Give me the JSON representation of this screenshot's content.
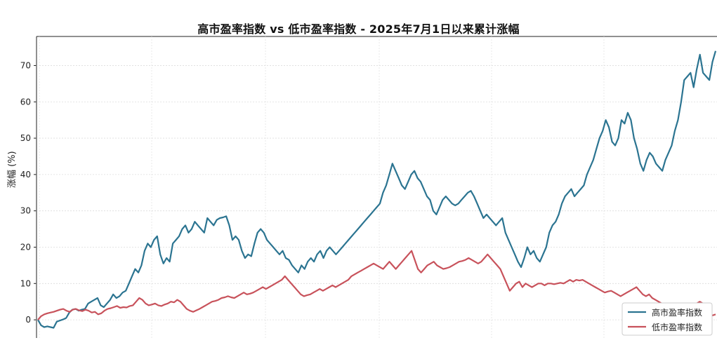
{
  "chart_data": {
    "type": "line",
    "title": "高市盈率指数 vs 低市盈率指数 - 2025年7月1日以来累计涨幅",
    "xlabel": "",
    "ylabel": "涨幅 (%)",
    "ylim": [
      -5,
      78
    ],
    "yticks": [
      0,
      10,
      20,
      30,
      40,
      50,
      60,
      70
    ],
    "grid": true,
    "legend": "bottom-right",
    "x_tick_labels_note": "cut off at bottom edge",
    "series": [
      {
        "name": "高市盈率指数",
        "color": "#2b7491",
        "values": [
          0,
          -1.5,
          -2,
          -1.8,
          -2,
          -2.2,
          -0.5,
          -0.2,
          0.1,
          0.5,
          2,
          2.8,
          3,
          2.5,
          2.8,
          3,
          4.5,
          5,
          5.5,
          6,
          4,
          3.5,
          4.5,
          5.5,
          7,
          6,
          6.5,
          7.5,
          8,
          10,
          12,
          14,
          13,
          15,
          19,
          21,
          20,
          22,
          23,
          18,
          15.5,
          17,
          16,
          21,
          22,
          23,
          25,
          26,
          24,
          25,
          27,
          26,
          25,
          24,
          28,
          27,
          26,
          27.5,
          28,
          28.2,
          28.5,
          26,
          22,
          23,
          22,
          19,
          17,
          18,
          17.5,
          21,
          24,
          25,
          24,
          22,
          21,
          20,
          19,
          18,
          19,
          17,
          16.5,
          15,
          14,
          13,
          15,
          14,
          16,
          17,
          16,
          18,
          19,
          17,
          19,
          20,
          19,
          18,
          19,
          20,
          21,
          22,
          23,
          24,
          25,
          26,
          27,
          28,
          29,
          30,
          31,
          32,
          35,
          37,
          40,
          43,
          41,
          39,
          37,
          36,
          38,
          40,
          41,
          39,
          38,
          36,
          34,
          33,
          30,
          29,
          31,
          33,
          34,
          33,
          32,
          31.5,
          32,
          33,
          34,
          35,
          35.5,
          34,
          32,
          30,
          28,
          29,
          28,
          27,
          26,
          27,
          28,
          24,
          22,
          20,
          18,
          16,
          14.5,
          17,
          20,
          18,
          19,
          17,
          16,
          18,
          20,
          24,
          26,
          27,
          29,
          32,
          34,
          35,
          36,
          34,
          35,
          36,
          37,
          40,
          42,
          44,
          47,
          50,
          52,
          55,
          53,
          49,
          48,
          50,
          55,
          54,
          57,
          55,
          50,
          47,
          43,
          41,
          44,
          46,
          45,
          43,
          42,
          41,
          44,
          46,
          48,
          52,
          55,
          60,
          66,
          67,
          68,
          64,
          69,
          73,
          68,
          67,
          66,
          71,
          74
        ]
      },
      {
        "name": "低市盈率指数",
        "color": "#c8525b",
        "values": [
          0,
          1,
          1.5,
          1.8,
          2,
          2.2,
          2.5,
          2.8,
          3,
          2.5,
          2.2,
          2.8,
          3,
          2.6,
          2.4,
          2.8,
          2.5,
          2,
          2.2,
          1.5,
          1.8,
          2.5,
          3,
          3.2,
          3.5,
          3.8,
          3.3,
          3.5,
          3.4,
          3.8,
          4,
          5,
          6,
          5.5,
          4.5,
          4,
          4.2,
          4.5,
          4,
          3.8,
          4.2,
          4.5,
          5,
          4.8,
          5.5,
          5,
          4,
          3,
          2.5,
          2.2,
          2.6,
          3,
          3.5,
          4,
          4.5,
          5,
          5.2,
          5.5,
          6,
          6.2,
          6.5,
          6.2,
          6,
          6.5,
          7,
          7.5,
          7,
          7.2,
          7.5,
          8,
          8.5,
          9,
          8.5,
          9,
          9.5,
          10,
          10.5,
          11,
          12,
          11,
          10,
          9,
          8,
          7,
          6.5,
          6.8,
          7,
          7.5,
          8,
          8.5,
          8,
          8.5,
          9,
          9.5,
          9,
          9.5,
          10,
          10.5,
          11,
          12,
          12.5,
          13,
          13.5,
          14,
          14.5,
          15,
          15.5,
          15,
          14.5,
          14,
          15,
          16,
          15,
          14,
          15,
          16,
          17,
          18,
          19,
          16.5,
          14,
          13,
          14,
          15,
          15.5,
          16,
          15,
          14.5,
          14,
          14.2,
          14.5,
          15,
          15.5,
          16,
          16.2,
          16.5,
          17,
          16.5,
          16,
          15.5,
          16,
          17,
          18,
          17,
          16,
          15,
          14,
          12,
          10,
          8,
          9,
          10,
          10.5,
          9,
          10,
          9.5,
          9,
          9.5,
          10,
          10,
          9.5,
          10,
          10,
          9.8,
          10,
          10.2,
          10,
          10.5,
          11,
          10.5,
          11,
          10.8,
          11,
          10.5,
          10,
          9.5,
          9,
          8.5,
          8,
          7.5,
          7.8,
          8,
          7.5,
          7,
          6.5,
          7,
          7.5,
          8,
          8.5,
          9,
          8,
          7,
          6.5,
          7,
          6,
          5.5,
          5,
          4.5,
          4,
          4.5,
          3.5,
          2,
          1.5,
          1,
          2,
          2.5,
          3,
          4,
          4.5,
          5,
          4.5,
          3,
          2,
          1.2,
          1.5
        ]
      }
    ]
  }
}
